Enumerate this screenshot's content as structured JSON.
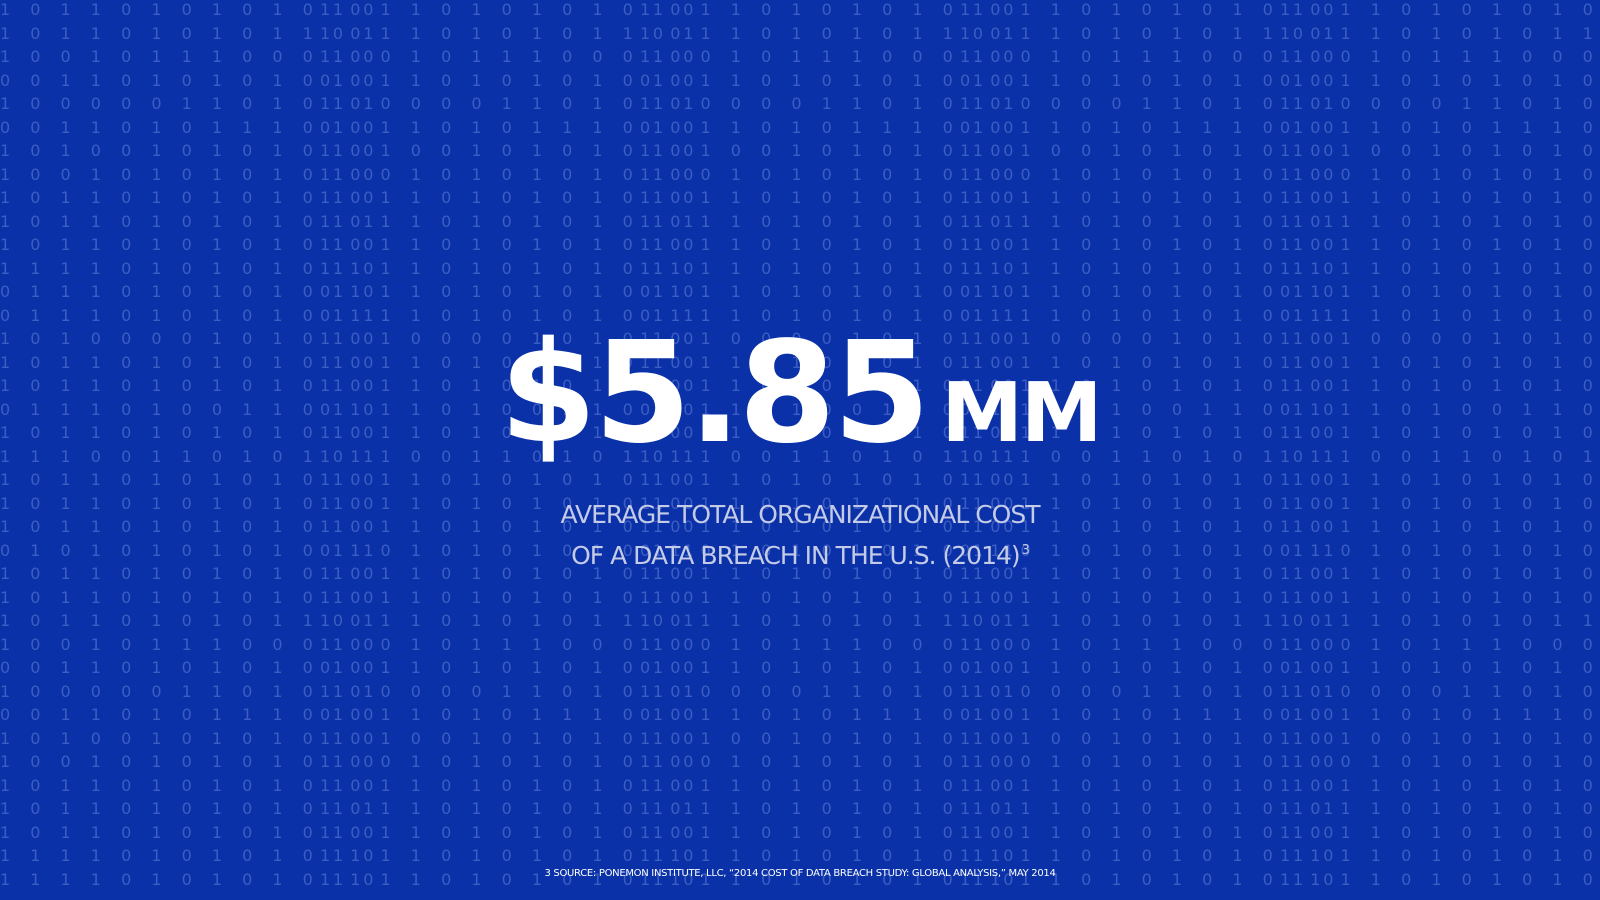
{
  "slide": {
    "stat_amount": "$5.85",
    "stat_unit": "MM",
    "subtitle_line1": "AVERAGE TOTAL ORGANIZATIONAL COST",
    "subtitle_line2": "OF A DATA BREACH IN THE U.S. (2014)",
    "footnote_marker": "3",
    "source_note": "3 SOURCE: PONEMON INSTITUTE, LLC, “2014 COST OF DATA BREACH STUDY: GLOBAL ANALYSIS,” MAY 2014",
    "colors": {
      "background": "#0a31a8",
      "headline": "#ffffff",
      "subtitle": "#c4cbe6",
      "binary_digits": "#7f99e3"
    }
  },
  "binary_rows": [
    "1 0 1 1 0 1 0 1 0 1 0 1 0",
    "1 0 1 1 0 1 0 1 0 1 1 0 1",
    "1 0 0 1 0 1 1 1 0 0 0 1 0",
    "0 0 1 1 0 1 0 1 0 1 0 1 0",
    "1 0 0 0 0 0 1 1 0 1 0 1 1",
    "0 0 1 1 0 1 0 1 1 1 0 1 0",
    "1 0 1 0 0 1 0 1 0 1 0 1 0",
    "1 0 0 1 0 1 0 1 0 1 0 1 0",
    "1 0 1 1 0 1 0 1 0 1 0 1 0",
    "1 0 1 1 0 1 0 1 0 1 0 1 1",
    "1 0 1 1 0 1 0 1 0 1 0 1 0",
    "1 1 1 1 0 1 0 1 0 1 0 1 0",
    "0 1 1 1 0 1 0 1 0 1 0 1 0",
    "0 1 1 1 0 1 0 1 0 1 0 1 1",
    "1 0 1 0 0 0 0 1 0 1 0 1 0",
    "1 0 1 1 0 1 0 1 0 1 0 1 0",
    "1 0 1 1 0 1 0 1 0 1 0 1 0",
    "0 1 1 1 0 1 0 0 1 1 0 1 0",
    "1 0 1 1 0 1 0 1 0 1 0 1 0",
    "1 1 1 0 0 1 1 0 1 0 1 0 1",
    "1 0 1 1 0 1 0 1 0 1 0 1 0",
    "1 0 1 1 0 1 0 1 0 1 0 1 0",
    "1 0 1 1 0 1 0 1 0 1 0 1 0",
    "0 1 0 1 0 1 0 1 0 1 0 1 1",
    "1 0 1 1 0 1 0 1 0 1 0 1 0",
    "1 0 1 1 0 1 0 1 0 1 0 1 0",
    "1 0 1 1 0 1 0 1 0 1 1 0 1",
    "1 0 0 1 0 1 1 1 0 0 0 1 0",
    "0 0 1 1 0 1 0 1 0 1 0 1 0",
    "1 0 0 0 0 0 1 1 0 1 0 1 1",
    "0 0 1 1 0 1 0 1 1 1 0 1 0",
    "1 0 1 0 0 1 0 1 0 1 0 1 0",
    "1 0 0 1 0 1 0 1 0 1 0 1 0",
    "1 0 1 1 0 1 0 1 0 1 0 1 0",
    "1 0 1 1 0 1 0 1 0 1 0 1 1",
    "1 0 1 1 0 1 0 1 0 1 0 1 0",
    "1 1 1 1 0 1 0 1 0 1 0 1 0",
    "1 1 1 1 0 1 0 1 0 1 0 1 0"
  ]
}
